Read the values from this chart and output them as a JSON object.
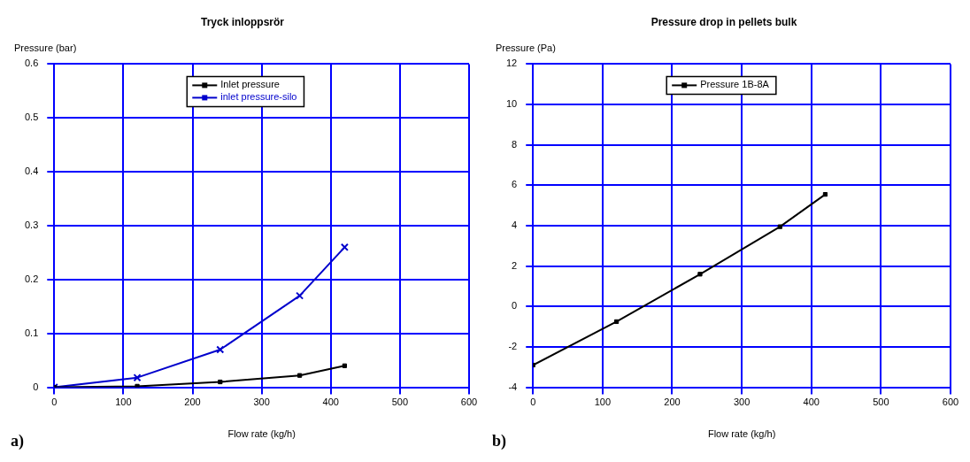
{
  "chart_data": [
    {
      "type": "line",
      "title": "Tryck inloppsrör",
      "xlabel": "Flow rate (kg/h)",
      "ylabel": "Pressure (bar)",
      "annotations": [
        "a)"
      ],
      "x": [
        0,
        120,
        240,
        355,
        420
      ],
      "xlim": [
        0,
        600
      ],
      "xticks": [
        0,
        100,
        200,
        300,
        400,
        500,
        600
      ],
      "ylim": [
        0,
        0.6
      ],
      "yticks": [
        0,
        0.1,
        0.2,
        0.3,
        0.4,
        0.5,
        0.6
      ],
      "grid": true,
      "legend": "top",
      "line_style": "solid",
      "series": [
        {
          "name": "Inlet pressure",
          "color": "#000000",
          "marker": "square",
          "values": [
            0,
            0.002,
            0.01,
            0.022,
            0.04
          ]
        },
        {
          "name": "inlet pressure-silo",
          "color": "#0000cc",
          "marker": "cross",
          "values": [
            0,
            0.018,
            0.07,
            0.17,
            0.26
          ]
        }
      ]
    },
    {
      "type": "line",
      "title": "Pressure drop in pellets bulk",
      "xlabel": "Flow rate (kg/h)",
      "ylabel": "Pressure (Pa)",
      "annotations": [
        "b)"
      ],
      "x": [
        0,
        120,
        240,
        355,
        420
      ],
      "xlim": [
        0,
        600
      ],
      "xticks": [
        0,
        100,
        200,
        300,
        400,
        500,
        600
      ],
      "ylim": [
        -4,
        12
      ],
      "yticks": [
        -4,
        -2,
        0,
        2,
        4,
        6,
        8,
        10,
        12
      ],
      "grid": true,
      "legend": "top",
      "line_style": "solid",
      "series": [
        {
          "name": "Pressure 1B-8A",
          "color": "#000000",
          "marker": "square",
          "values": [
            -2.9,
            -0.75,
            1.6,
            3.95,
            5.55
          ]
        }
      ]
    }
  ]
}
